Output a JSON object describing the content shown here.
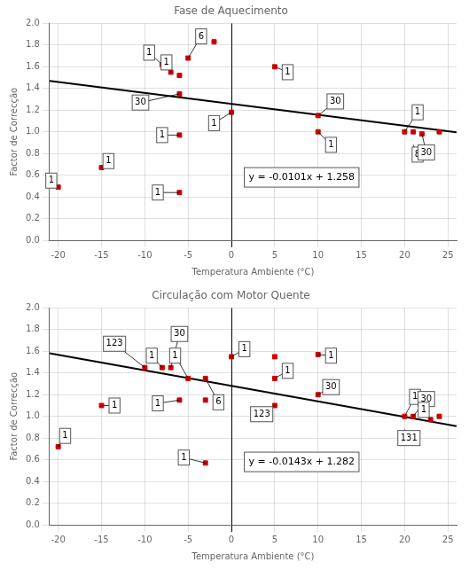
{
  "chart_data": [
    {
      "type": "scatter",
      "title": "Fase de Aquecimento",
      "x_label": "Temperatura Ambiente (°C)",
      "y_label": "Factor de Correcção",
      "xlim": [
        -21,
        26
      ],
      "ylim": [
        0.0,
        2.0
      ],
      "xticks": [
        -20,
        -15,
        -10,
        -5,
        0,
        5,
        10,
        15,
        20,
        25
      ],
      "yticks": [
        {
          "value": 0.0,
          "label": "0.0"
        },
        0.2,
        0.4,
        0.6,
        0.8,
        {
          "value": 1.0,
          "label": "1.0"
        },
        1.2,
        1.4,
        1.6,
        1.8,
        {
          "value": 2.0,
          "label": "2.0"
        }
      ],
      "grid": true,
      "legend": false,
      "series": [
        {
          "type": "scatter",
          "marker": "square",
          "color": "#CC0000",
          "x": [
            -20,
            -15,
            -8,
            -7,
            -6,
            -6,
            -6,
            -6,
            -5,
            -2,
            0,
            5,
            10,
            10,
            20,
            21,
            22,
            24
          ],
          "values": [
            0.49,
            0.67,
            1.62,
            1.55,
            1.52,
            1.35,
            0.97,
            0.44,
            1.68,
            1.83,
            1.18,
            1.6,
            1.15,
            1.0,
            1.0,
            1.0,
            0.98,
            1.0
          ]
        },
        {
          "type": "line",
          "color": "black",
          "x": [
            -21,
            26
          ],
          "values": [
            1.4701,
            0.9954
          ]
        }
      ],
      "annotations": [
        {
          "text": "1",
          "x": -20.8,
          "y": 0.55,
          "point": [
            -20,
            0.49
          ]
        },
        {
          "text": "1",
          "x": -14.2,
          "y": 0.73,
          "point": [
            -15,
            0.67
          ]
        },
        {
          "text": "1",
          "x": -9.5,
          "y": 1.73,
          "point": [
            -8,
            1.62
          ]
        },
        {
          "text": "1",
          "x": -7.5,
          "y": 1.64,
          "point": [
            -7,
            1.55
          ]
        },
        {
          "text": "30",
          "x": -10.5,
          "y": 1.27,
          "point": [
            -6,
            1.35
          ]
        },
        {
          "text": "1",
          "x": -8.0,
          "y": 0.97,
          "point": [
            -6,
            0.97
          ]
        },
        {
          "text": "1",
          "x": -8.5,
          "y": 0.44,
          "point": [
            -6,
            0.44
          ]
        },
        {
          "text": "6",
          "x": -3.5,
          "y": 1.88,
          "point": [
            -5,
            1.68
          ]
        },
        {
          "text": "1",
          "x": -2.0,
          "y": 1.08,
          "point": [
            0,
            1.18
          ]
        },
        {
          "text": "1",
          "x": 6.5,
          "y": 1.55,
          "point": [
            5,
            1.6
          ]
        },
        {
          "text": "30",
          "x": 12.0,
          "y": 1.28,
          "point": [
            10,
            1.15
          ]
        },
        {
          "text": "1",
          "x": 11.5,
          "y": 0.88,
          "point": [
            10,
            1.0
          ]
        },
        {
          "text": "1",
          "x": 21.5,
          "y": 1.18,
          "point": [
            20,
            1.0
          ]
        },
        {
          "text": "8",
          "x": 21.5,
          "y": 0.79,
          "point": [
            21,
            0.88
          ]
        },
        {
          "text": "30",
          "x": 22.5,
          "y": 0.81,
          "point": [
            22,
            0.98
          ]
        },
        {
          "text": "y = -0.0101x + 1.258",
          "x": 2.0,
          "y": 0.58
        }
      ]
    },
    {
      "type": "scatter",
      "title": "Circulação com Motor Quente",
      "x_label": "Temperatura Ambiente (°C)",
      "y_label": "Factor de Correcção",
      "xlim": [
        -21,
        26
      ],
      "ylim": [
        0.0,
        2.0
      ],
      "xticks": [
        -20,
        -15,
        -10,
        -5,
        0,
        5,
        10,
        15,
        20,
        25
      ],
      "yticks": [
        {
          "value": 0.0,
          "label": "0.0"
        },
        0.2,
        0.4,
        0.6,
        0.8,
        {
          "value": 1.0,
          "label": "1.0"
        },
        1.2,
        1.4,
        1.6,
        1.8,
        {
          "value": 2.0,
          "label": "2.0"
        }
      ],
      "grid": true,
      "legend": false,
      "series": [
        {
          "type": "scatter",
          "marker": "square",
          "color": "#CC0000",
          "x": [
            -20,
            -15,
            -10,
            -8,
            -7,
            -6,
            -5,
            -3,
            -3,
            -3,
            0,
            5,
            5,
            5,
            10,
            10,
            20,
            21,
            23,
            24
          ],
          "values": [
            0.72,
            1.1,
            1.45,
            1.45,
            1.45,
            1.15,
            1.35,
            1.35,
            1.15,
            0.57,
            1.55,
            1.55,
            1.35,
            1.1,
            1.57,
            1.2,
            1.0,
            1.0,
            0.97,
            1.0
          ]
        },
        {
          "type": "line",
          "color": "black",
          "x": [
            -21,
            26
          ],
          "values": [
            1.5823,
            0.9102
          ]
        }
      ],
      "annotations": [
        {
          "text": "1",
          "x": -19.2,
          "y": 0.82,
          "point": [
            -20,
            0.72
          ]
        },
        {
          "text": "1",
          "x": -13.5,
          "y": 1.1,
          "point": [
            -15,
            1.1
          ]
        },
        {
          "text": "123",
          "x": -13.5,
          "y": 1.67,
          "point": [
            -10,
            1.45
          ]
        },
        {
          "text": "1",
          "x": -9.2,
          "y": 1.56,
          "point": [
            -8,
            1.45
          ]
        },
        {
          "text": "30",
          "x": -6.0,
          "y": 1.76,
          "point": [
            -7,
            1.45
          ]
        },
        {
          "text": "1",
          "x": -8.5,
          "y": 1.12,
          "point": [
            -6,
            1.15
          ]
        },
        {
          "text": "1",
          "x": -6.5,
          "y": 1.56,
          "point": [
            -5,
            1.35
          ]
        },
        {
          "text": "6",
          "x": -1.5,
          "y": 1.13,
          "point": [
            -3,
            1.35
          ]
        },
        {
          "text": "1",
          "x": -5.5,
          "y": 0.62,
          "point": [
            -3,
            0.57
          ]
        },
        {
          "text": "1",
          "x": 1.5,
          "y": 1.62,
          "point": [
            0,
            1.55
          ]
        },
        {
          "text": "1",
          "x": 6.5,
          "y": 1.42,
          "point": [
            5,
            1.35
          ]
        },
        {
          "text": "123",
          "x": 3.5,
          "y": 1.02,
          "point": [
            5,
            1.1
          ]
        },
        {
          "text": "1",
          "x": 11.5,
          "y": 1.56,
          "point": [
            10,
            1.57
          ]
        },
        {
          "text": "30",
          "x": 11.5,
          "y": 1.27,
          "point": [
            10,
            1.2
          ]
        },
        {
          "text": "1",
          "x": 21.2,
          "y": 1.18,
          "point": [
            20,
            1.0
          ]
        },
        {
          "text": "131",
          "x": 20.5,
          "y": 0.8,
          "point": [
            20,
            0.88
          ]
        },
        {
          "text": "30",
          "x": 22.5,
          "y": 1.16,
          "point": [
            21,
            1.0
          ]
        },
        {
          "text": "1",
          "x": 22.2,
          "y": 1.06,
          "point": [
            23,
            0.97
          ]
        },
        {
          "text": "y = -0.0143x + 1.282",
          "x": 2.0,
          "y": 0.58
        }
      ]
    }
  ]
}
